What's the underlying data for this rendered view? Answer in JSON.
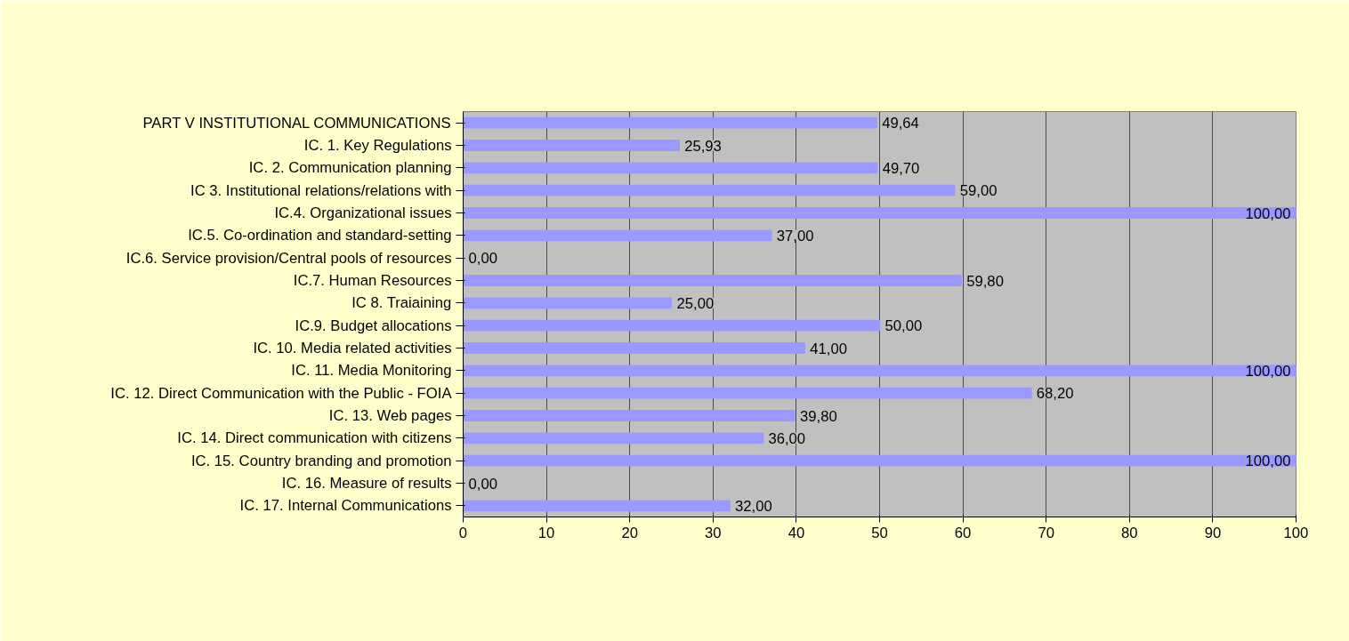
{
  "chart_data": {
    "type": "bar",
    "orientation": "horizontal",
    "categories": [
      "PART V INSTITUTIONAL COMMUNICATIONS",
      "IC. 1. Key Regulations",
      "IC. 2. Communication planning",
      "IC 3. Institutional relations/relations with",
      "IC.4. Organizational issues",
      "IC.5. Co-ordination and standard-setting",
      "IC.6. Service provision/Central pools of resources",
      "IC.7. Human Resources",
      "IC 8. Traiaining",
      "IC.9. Budget allocations",
      "IC. 10. Media related activities",
      "IC. 11. Media Monitoring",
      "IC. 12. Direct Communication with the Public - FOIA",
      "IC. 13. Web pages",
      "IC. 14. Direct communication with citizens",
      "IC. 15. Country branding and promotion",
      "IC. 16. Measure of results",
      "IC. 17. Internal Communications"
    ],
    "values": [
      49.64,
      25.93,
      49.7,
      59,
      100,
      37,
      0,
      59.8,
      25,
      50,
      41,
      100,
      68.2,
      39.8,
      36,
      100,
      0,
      32
    ],
    "value_labels": [
      "49,64",
      "25,93",
      "49,70",
      "59,00",
      "100,00",
      "37,00",
      "0,00",
      "59,80",
      "25,00",
      "50,00",
      "41,00",
      "100,00",
      "68,20",
      "39,80",
      "36,00",
      "100,00",
      "0,00",
      "32,00"
    ],
    "color": "#9999ff",
    "xlim": [
      0,
      100
    ],
    "xticks": [
      0,
      10,
      20,
      30,
      40,
      50,
      60,
      70,
      80,
      90,
      100
    ],
    "grid": "x"
  }
}
